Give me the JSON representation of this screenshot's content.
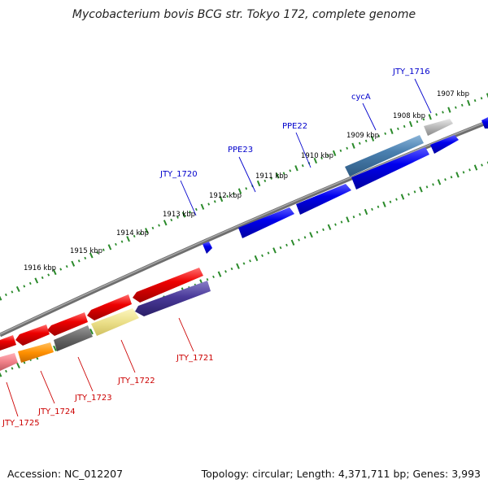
{
  "header": {
    "title": "Mycobacterium bovis BCG str. Tokyo 172, complete genome"
  },
  "footer": {
    "accession": "Accession: NC_012207",
    "topology": "Topology: circular; Length: 4,371,711 bp; Genes: 3,993"
  },
  "colors": {
    "backbone": "#808080",
    "tick": "#2a8a2a",
    "forward_gene": "#0000ee",
    "reverse_gene": "#ee0000",
    "forward_label": "#0000cc",
    "reverse_label": "#cc0000"
  },
  "scale": {
    "kbp_labels": [
      "1907 kbp",
      "1908 kbp",
      "1909 kbp",
      "1910 kbp",
      "1911 kbp",
      "1912 kbp",
      "1913 kbp",
      "1914 kbp",
      "1915 kbp",
      "1916 kbp"
    ]
  },
  "forward_labels": [
    "JTY_1716",
    "cycA",
    "PPE22",
    "PPE23",
    "JTY_1720"
  ],
  "reverse_labels": [
    "JTY_1721",
    "JTY_1722",
    "JTY_1723",
    "JTY_1724",
    "JTY_1725"
  ]
}
